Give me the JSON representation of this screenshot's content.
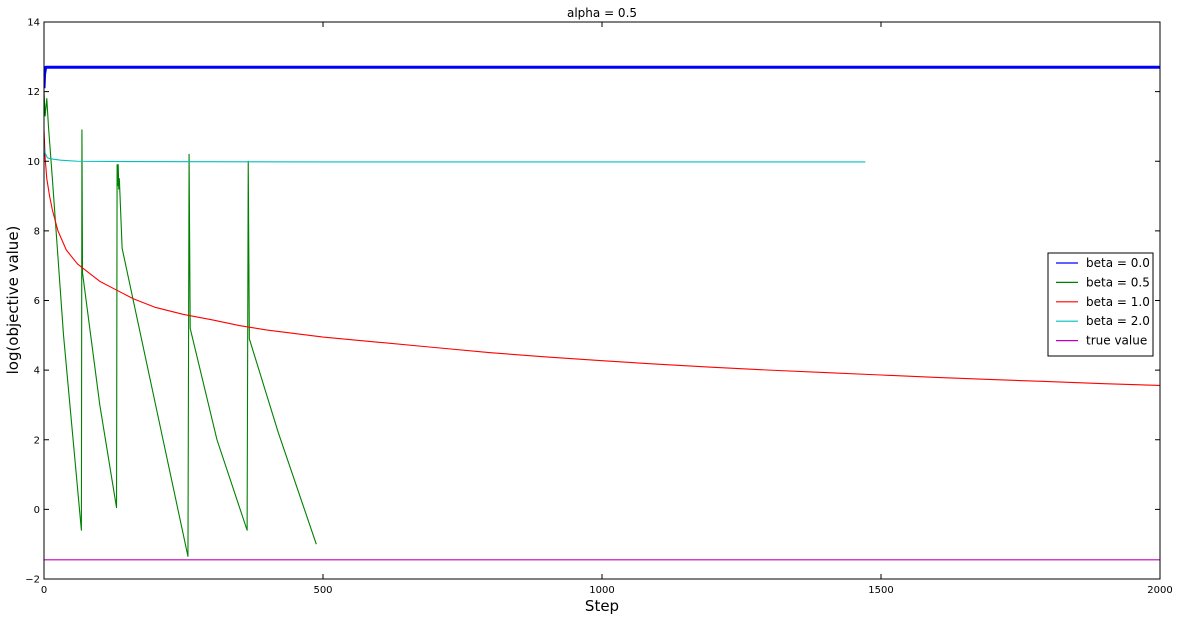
{
  "chart_data": {
    "type": "line",
    "title": "alpha = 0.5",
    "xlabel": "Step",
    "ylabel": "log(objective value)",
    "xlim": [
      0,
      2000
    ],
    "ylim": [
      -2,
      14
    ],
    "xticks": [
      0,
      500,
      1000,
      1500,
      2000
    ],
    "yticks": [
      -2,
      0,
      2,
      4,
      6,
      8,
      10,
      12,
      14
    ],
    "grid": false,
    "legend_position": "center-right",
    "series": [
      {
        "name": "beta = 0.0",
        "color": "#0000ff",
        "points": [
          [
            0,
            12.1
          ],
          [
            1,
            12.5
          ],
          [
            3,
            12.7
          ],
          [
            2000,
            12.7
          ]
        ]
      },
      {
        "name": "beta = 0.5",
        "color": "#008000",
        "points": [
          [
            0,
            12.0
          ],
          [
            2,
            11.3
          ],
          [
            5,
            11.8
          ],
          [
            8,
            11.0
          ],
          [
            15,
            9.5
          ],
          [
            35,
            5.0
          ],
          [
            67,
            -0.6
          ],
          [
            68,
            10.9
          ],
          [
            69,
            6.8
          ],
          [
            100,
            3.0
          ],
          [
            130,
            0.05
          ],
          [
            131,
            9.9
          ],
          [
            132,
            9.3
          ],
          [
            133,
            9.9
          ],
          [
            134,
            9.2
          ],
          [
            135,
            9.5
          ],
          [
            140,
            7.5
          ],
          [
            200,
            3.0
          ],
          [
            258,
            -1.35
          ],
          [
            260,
            10.2
          ],
          [
            262,
            5.2
          ],
          [
            310,
            2.0
          ],
          [
            364,
            -0.6
          ],
          [
            366,
            10.0
          ],
          [
            368,
            4.9
          ],
          [
            420,
            2.2
          ],
          [
            488,
            -1.0
          ]
        ]
      },
      {
        "name": "beta = 1.0",
        "color": "#ff0000",
        "points": [
          [
            0,
            10.9
          ],
          [
            2,
            10.1
          ],
          [
            5,
            9.5
          ],
          [
            10,
            9.0
          ],
          [
            15,
            8.6
          ],
          [
            25,
            8.0
          ],
          [
            40,
            7.45
          ],
          [
            60,
            7.05
          ],
          [
            80,
            6.8
          ],
          [
            100,
            6.55
          ],
          [
            130,
            6.3
          ],
          [
            160,
            6.05
          ],
          [
            200,
            5.8
          ],
          [
            250,
            5.6
          ],
          [
            300,
            5.45
          ],
          [
            350,
            5.28
          ],
          [
            400,
            5.15
          ],
          [
            500,
            4.95
          ],
          [
            600,
            4.8
          ],
          [
            700,
            4.65
          ],
          [
            800,
            4.5
          ],
          [
            900,
            4.38
          ],
          [
            1000,
            4.27
          ],
          [
            1100,
            4.17
          ],
          [
            1200,
            4.08
          ],
          [
            1300,
            4.0
          ],
          [
            1400,
            3.93
          ],
          [
            1500,
            3.86
          ],
          [
            1600,
            3.79
          ],
          [
            1700,
            3.73
          ],
          [
            1800,
            3.67
          ],
          [
            1900,
            3.61
          ],
          [
            2000,
            3.56
          ]
        ]
      },
      {
        "name": "beta = 2.0",
        "color": "#00bfbf",
        "points": [
          [
            0,
            10.5
          ],
          [
            1,
            10.3
          ],
          [
            3,
            10.2
          ],
          [
            6,
            10.1
          ],
          [
            12,
            10.07
          ],
          [
            30,
            10.03
          ],
          [
            60,
            10.0
          ],
          [
            150,
            9.99
          ],
          [
            500,
            9.98
          ],
          [
            1000,
            9.98
          ],
          [
            1472,
            9.98
          ]
        ]
      },
      {
        "name": "true value",
        "color": "#bf00bf",
        "points": [
          [
            0,
            -1.45
          ],
          [
            2000,
            -1.45
          ]
        ]
      }
    ]
  }
}
